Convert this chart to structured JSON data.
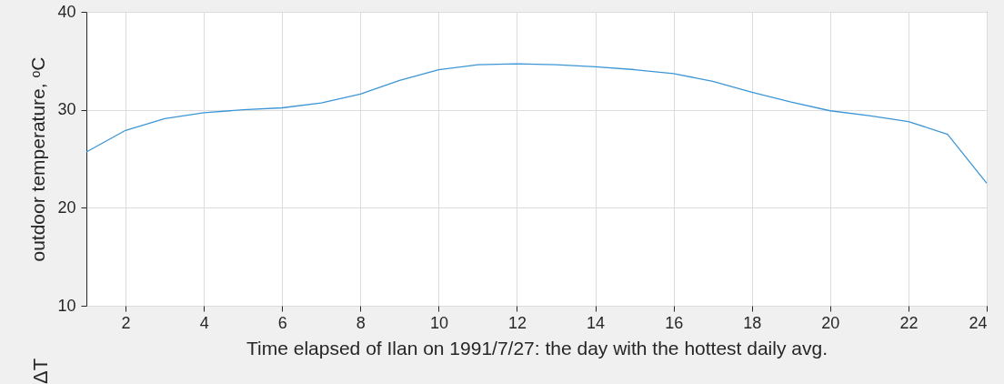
{
  "chart_data": {
    "type": "line",
    "xlabel": "Time elapsed of Ilan on 1991/7/27: the day with the hottest daily avg.",
    "ylabel": "outdoor temperature, ᵒC",
    "x": [
      1,
      2,
      3,
      4,
      5,
      6,
      7,
      8,
      9,
      10,
      11,
      12,
      13,
      14,
      15,
      16,
      17,
      18,
      19,
      20,
      21,
      22,
      23,
      24
    ],
    "series": [
      {
        "color": "#3c96d6",
        "values": [
          25.7,
          27.9,
          29.1,
          29.7,
          30.0,
          30.2,
          30.7,
          31.6,
          33.0,
          34.1,
          34.6,
          34.7,
          34.6,
          34.4,
          34.1,
          33.7,
          32.9,
          31.8,
          30.8,
          29.9,
          29.4,
          28.8,
          27.5,
          22.5
        ]
      }
    ],
    "xlim": [
      1,
      24
    ],
    "xticks": [
      2,
      4,
      6,
      8,
      10,
      12,
      14,
      16,
      18,
      20,
      22,
      24
    ],
    "ylim": [
      10,
      40
    ],
    "yticks": [
      10,
      20,
      30,
      40
    ],
    "grid": true,
    "annotations": [
      "ΔT"
    ]
  }
}
